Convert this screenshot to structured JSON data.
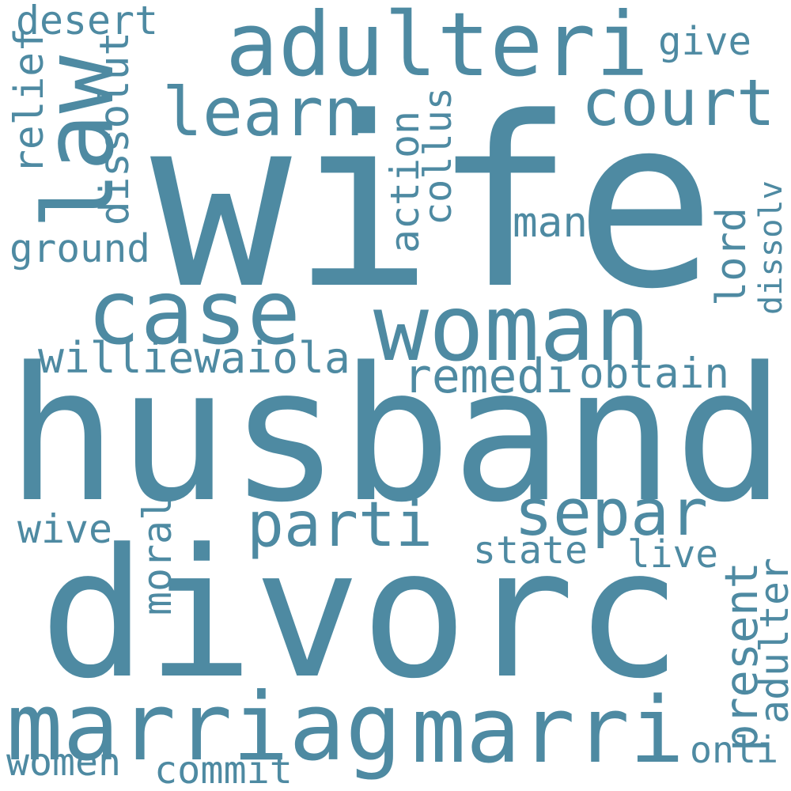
{
  "word_color": "#4e8aa2",
  "background_color": "#ffffff",
  "words": [
    {
      "text": "wife",
      "orientation": "horizontal"
    },
    {
      "text": "husband",
      "orientation": "horizontal"
    },
    {
      "text": "divorc",
      "orientation": "horizontal"
    },
    {
      "text": "adulteri",
      "orientation": "horizontal"
    },
    {
      "text": "law",
      "orientation": "vertical"
    },
    {
      "text": "woman",
      "orientation": "horizontal"
    },
    {
      "text": "case",
      "orientation": "horizontal"
    },
    {
      "text": "marriag",
      "orientation": "horizontal"
    },
    {
      "text": "marri",
      "orientation": "horizontal"
    },
    {
      "text": "court",
      "orientation": "horizontal"
    },
    {
      "text": "separ",
      "orientation": "horizontal"
    },
    {
      "text": "parti",
      "orientation": "horizontal"
    },
    {
      "text": "learn",
      "orientation": "horizontal"
    },
    {
      "text": "williewaiola",
      "orientation": "horizontal"
    },
    {
      "text": "remedi",
      "orientation": "horizontal"
    },
    {
      "text": "obtain",
      "orientation": "horizontal"
    },
    {
      "text": "man",
      "orientation": "horizontal"
    },
    {
      "text": "desert",
      "orientation": "horizontal"
    },
    {
      "text": "dissolut",
      "orientation": "vertical"
    },
    {
      "text": "relief",
      "orientation": "vertical"
    },
    {
      "text": "give",
      "orientation": "horizontal"
    },
    {
      "text": "action",
      "orientation": "vertical"
    },
    {
      "text": "collus",
      "orientation": "vertical"
    },
    {
      "text": "ground",
      "orientation": "horizontal"
    },
    {
      "text": "lord",
      "orientation": "vertical"
    },
    {
      "text": "dissolv",
      "orientation": "vertical"
    },
    {
      "text": "state",
      "orientation": "horizontal"
    },
    {
      "text": "live",
      "orientation": "horizontal"
    },
    {
      "text": "wive",
      "orientation": "horizontal"
    },
    {
      "text": "moral",
      "orientation": "vertical"
    },
    {
      "text": "present",
      "orientation": "vertical"
    },
    {
      "text": "adulter",
      "orientation": "vertical"
    },
    {
      "text": "women",
      "orientation": "horizontal"
    },
    {
      "text": "commit",
      "orientation": "horizontal"
    },
    {
      "text": "onli",
      "orientation": "horizontal"
    }
  ]
}
